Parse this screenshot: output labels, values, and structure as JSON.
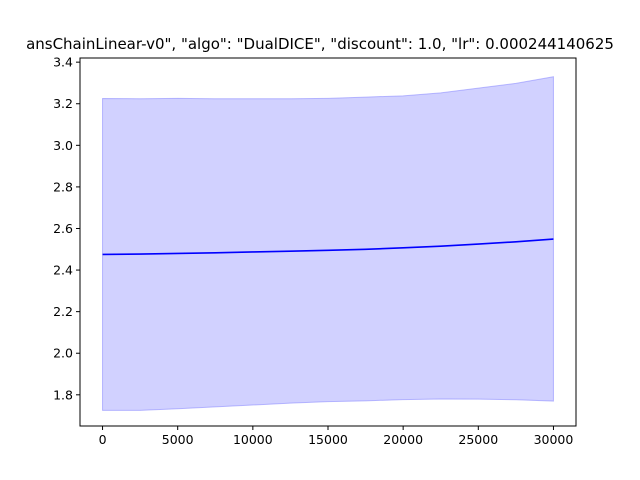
{
  "chart_data": {
    "type": "line",
    "title": "ansChainLinear-v0\", \"algo\": \"DualDICE\", \"discount\": 1.0, \"lr\": 0.000244140625",
    "xlabel": "",
    "ylabel": "",
    "xlim": [
      -1500,
      31500
    ],
    "ylim": [
      1.65,
      3.42
    ],
    "xticks": [
      0,
      5000,
      10000,
      15000,
      20000,
      25000,
      30000
    ],
    "xtick_labels": [
      "0",
      "5000",
      "10000",
      "15000",
      "20000",
      "25000",
      "30000"
    ],
    "yticks": [
      1.8,
      2.0,
      2.2,
      2.4,
      2.6,
      2.8,
      3.0,
      3.2,
      3.4
    ],
    "ytick_labels": [
      "1.8",
      "2.0",
      "2.2",
      "2.4",
      "2.6",
      "2.8",
      "3.0",
      "3.2",
      "3.4"
    ],
    "grid": false,
    "legend": "none",
    "series": [
      {
        "kind": "line",
        "color": "#0000ff",
        "x": [
          0,
          2500,
          5000,
          7500,
          10000,
          12500,
          15000,
          17500,
          20000,
          22500,
          25000,
          27500,
          30000
        ],
        "y": [
          2.475,
          2.477,
          2.48,
          2.483,
          2.487,
          2.491,
          2.495,
          2.5,
          2.507,
          2.515,
          2.525,
          2.536,
          2.549
        ]
      },
      {
        "kind": "band",
        "color": "#7070ff",
        "opacity": 0.32,
        "x": [
          0,
          2500,
          5000,
          7500,
          10000,
          12500,
          15000,
          17500,
          20000,
          22500,
          25000,
          27500,
          30000
        ],
        "upper": [
          3.225,
          3.224,
          3.226,
          3.224,
          3.224,
          3.224,
          3.226,
          3.232,
          3.238,
          3.252,
          3.275,
          3.298,
          3.33
        ],
        "lower": [
          1.725,
          1.725,
          1.733,
          1.742,
          1.751,
          1.76,
          1.767,
          1.771,
          1.777,
          1.78,
          1.779,
          1.776,
          1.77
        ]
      }
    ]
  }
}
